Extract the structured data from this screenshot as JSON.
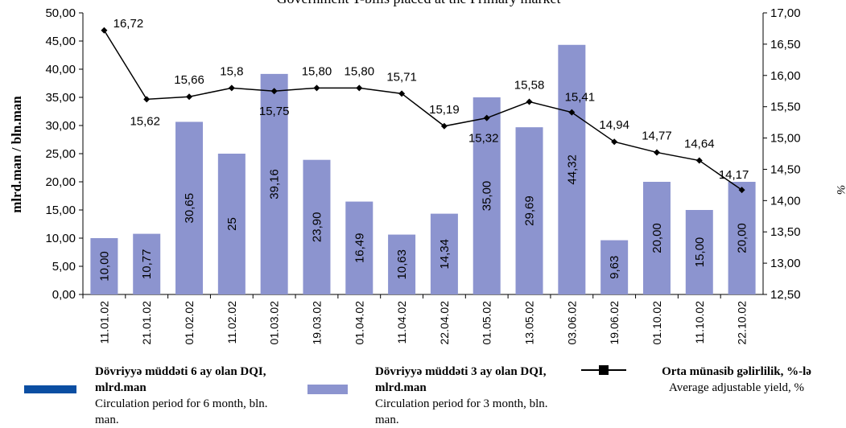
{
  "chart_data": {
    "type": "bar_line",
    "title": "Government T-bills placed at the Primary market",
    "y_label": "mlrd.man / bln.man",
    "y2_label": "%",
    "categories": [
      "11.01.02",
      "21.01.02",
      "01.02.02",
      "11.02.02",
      "01.03.02",
      "19.03.02",
      "01.04.02",
      "11.04.02",
      "22.04.02",
      "01.05.02",
      "13.05.02",
      "03.06.02",
      "19.06.02",
      "01.10.02",
      "11.10.02",
      "22.10.02"
    ],
    "ylim": [
      0,
      50
    ],
    "yticks": [
      {
        "value": 0,
        "label": "0,00"
      },
      {
        "value": 5,
        "label": "5,00"
      },
      {
        "value": 10,
        "label": "10,00"
      },
      {
        "value": 15,
        "label": "15,00"
      },
      {
        "value": 20,
        "label": "20,00"
      },
      {
        "value": 25,
        "label": "25,00"
      },
      {
        "value": 30,
        "label": "30,00"
      },
      {
        "value": 35,
        "label": "35,00"
      },
      {
        "value": 40,
        "label": "40,00"
      },
      {
        "value": 45,
        "label": "45,00"
      },
      {
        "value": 50,
        "label": "50,00"
      }
    ],
    "y2lim": [
      12.5,
      17
    ],
    "y2ticks": [
      {
        "value": 12.5,
        "label": "12,50"
      },
      {
        "value": 13,
        "label": "13,00"
      },
      {
        "value": 13.5,
        "label": "13,50"
      },
      {
        "value": 14,
        "label": "14,00"
      },
      {
        "value": 14.5,
        "label": "14,50"
      },
      {
        "value": 15,
        "label": "15,00"
      },
      {
        "value": 15.5,
        "label": "15,50"
      },
      {
        "value": 16,
        "label": "16,00"
      },
      {
        "value": 16.5,
        "label": "16,50"
      },
      {
        "value": 17,
        "label": "17,00"
      }
    ],
    "series": [
      {
        "name": "Dövriyyə müddəti 6 ay olan DQI, mlrd.man",
        "description": "Circulation period for 6 month, bln. man.",
        "color": "#0b4ea2",
        "kind": "bar",
        "values": [
          null,
          null,
          null,
          null,
          null,
          null,
          null,
          null,
          null,
          null,
          null,
          null,
          null,
          null,
          null,
          null
        ]
      },
      {
        "name": "Dövriyyə müddəti 3 ay olan DQI, mlrd.man",
        "description": "Circulation period for 3 month, bln. man.",
        "color": "#8c94cf",
        "kind": "bar",
        "values": [
          10.0,
          10.77,
          30.65,
          25,
          39.16,
          23.9,
          16.49,
          10.63,
          14.34,
          35.0,
          29.69,
          44.32,
          9.63,
          20.0,
          15.0,
          20.0
        ],
        "value_labels": [
          "10,00",
          "10,77",
          "30,65",
          "25",
          "39,16",
          "23,90",
          "16,49",
          "10,63",
          "14,34",
          "35,00",
          "29,69",
          "44,32",
          "9,63",
          "20,00",
          "15,00",
          "20,00"
        ]
      },
      {
        "name": "Orta münasib gəlirlilik, %-lə",
        "description": "Average adjustable yield, %",
        "color": "#000000",
        "kind": "line",
        "axis": "y2",
        "values": [
          16.72,
          15.62,
          15.66,
          15.8,
          15.75,
          15.8,
          15.8,
          15.71,
          15.19,
          15.32,
          15.58,
          15.41,
          14.94,
          14.77,
          14.64,
          14.17
        ],
        "value_labels": [
          "16,72",
          "15,62",
          "15,66",
          "15,8",
          "15,75",
          "15,80",
          "15,80",
          "15,71",
          "15,19",
          "15,32",
          "15,58",
          "15,41",
          "14,94",
          "14,77",
          "14,64",
          "14,17"
        ]
      }
    ]
  }
}
